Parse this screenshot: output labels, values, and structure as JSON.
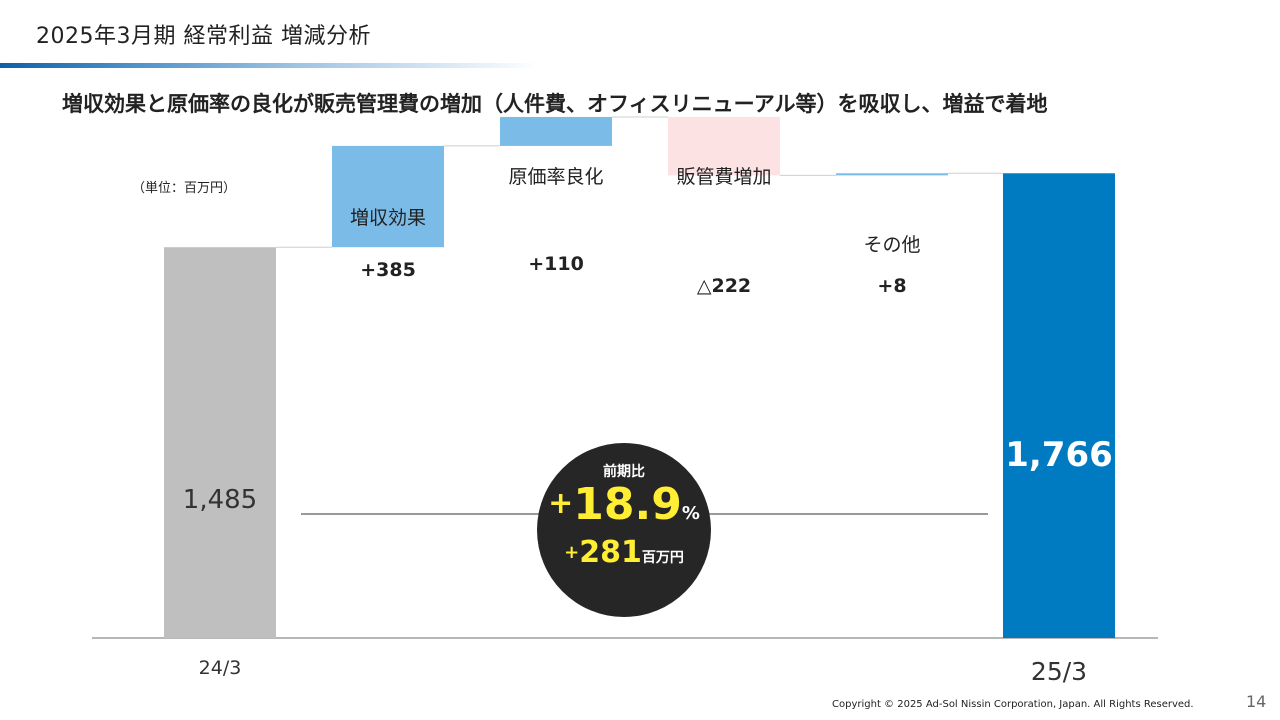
{
  "header": {
    "title": "2025年3月期  経常利益 増減分析",
    "subtitle": "増収効果と原価率の良化が販売管理費の増加（人件費、オフィスリニューアル等）を吸収し、増益で着地"
  },
  "colors": {
    "start_bar": "#bfbfbf",
    "increase": "#7bbbe8",
    "decrease": "#fde2e4",
    "end_bar": "#007bc1",
    "circle_bg": "#262626",
    "highlight_text": "#ffee33"
  },
  "chart_data": {
    "type": "bar",
    "subtype": "waterfall",
    "unit_label": "（単位：百万円）",
    "ylim": [
      0,
      1900
    ],
    "categories": [
      "24/3",
      "増収効果",
      "原価率良化",
      "販管費増加",
      "その他",
      "25/3"
    ],
    "values": [
      1485,
      385,
      110,
      -222,
      8,
      1766
    ],
    "value_labels": [
      "1,485",
      "+385",
      "+110",
      "△222",
      "+8",
      "1,766"
    ],
    "bar_kinds": [
      "total",
      "delta",
      "delta",
      "delta",
      "delta",
      "total"
    ],
    "x_tick_labels": [
      "24/3",
      "",
      "",
      "",
      "",
      "25/3"
    ]
  },
  "summary": {
    "label": "前期比",
    "pct_sign": "+",
    "pct_value": "18.9",
    "pct_symbol": "%",
    "amount_sign": "+",
    "amount_value": "281",
    "amount_unit": "百万円"
  },
  "footer": {
    "copyright": "Copyright © 2025 Ad-Sol Nissin Corporation, Japan. All Rights Reserved.",
    "page_number": "14"
  }
}
